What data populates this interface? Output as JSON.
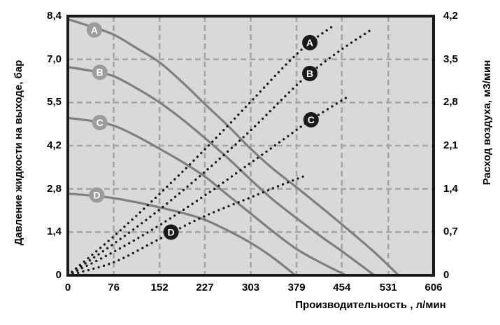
{
  "colors": {
    "page_bg": "#ffffff",
    "plot_bg": "#d9d9d9",
    "grid": "#a6a6a6",
    "border": "#1a1a1a",
    "pressure_curve": "#7f7f7f",
    "pressure_label_bg": "#9c9c9c",
    "air_curve": "#1a1a1a",
    "air_label_bg": "#1a1a1a",
    "label_text": "#ffffff",
    "axis_text": "#000000"
  },
  "chart_data": {
    "type": "line",
    "title": "",
    "xlabel": "Производительность , л/мин",
    "ylabel_left": "Давление жидкости на выходе, бар",
    "ylabel_right": "Расход воздуха, м3/мин",
    "xlim": [
      0,
      606
    ],
    "ylim_left": [
      0,
      8.4
    ],
    "ylim_right": [
      0,
      4.2
    ],
    "grid": true,
    "x_ticks": [
      "0",
      "76",
      "152",
      "227",
      "303",
      "379",
      "454",
      "531",
      "606"
    ],
    "x_tick_values": [
      0,
      76,
      152,
      227,
      303,
      379,
      454,
      531,
      606
    ],
    "y_left_ticks": [
      "0",
      "1,4",
      "2,8",
      "4,2",
      "5,5",
      "7,0",
      "8,4"
    ],
    "y_right_ticks": [
      "0",
      "0,7",
      "1,4",
      "2,1",
      "2,8",
      "3,5",
      "4,2"
    ],
    "series": [
      {
        "name": "A",
        "kind": "pressure",
        "axis": "left",
        "style": "solid",
        "label": {
          "text": "A",
          "x": 44,
          "y": 7.95
        },
        "points": [
          [
            0,
            8.3
          ],
          [
            40,
            8.05
          ],
          [
            76,
            7.8
          ],
          [
            115,
            7.35
          ],
          [
            152,
            6.9
          ],
          [
            190,
            6.25
          ],
          [
            227,
            5.55
          ],
          [
            265,
            4.85
          ],
          [
            303,
            4.1
          ],
          [
            340,
            3.45
          ],
          [
            379,
            2.85
          ],
          [
            420,
            2.2
          ],
          [
            454,
            1.65
          ],
          [
            505,
            0.8
          ],
          [
            548,
            0
          ]
        ]
      },
      {
        "name": "B",
        "kind": "pressure",
        "axis": "left",
        "style": "solid",
        "label": {
          "text": "B",
          "x": 53,
          "y": 6.58
        },
        "points": [
          [
            0,
            6.75
          ],
          [
            40,
            6.62
          ],
          [
            76,
            6.45
          ],
          [
            115,
            6.05
          ],
          [
            152,
            5.6
          ],
          [
            190,
            5.05
          ],
          [
            227,
            4.45
          ],
          [
            265,
            3.8
          ],
          [
            303,
            3.1
          ],
          [
            340,
            2.45
          ],
          [
            379,
            1.85
          ],
          [
            420,
            1.25
          ],
          [
            454,
            0.78
          ],
          [
            508,
            0
          ]
        ]
      },
      {
        "name": "C",
        "kind": "pressure",
        "axis": "left",
        "style": "solid",
        "label": {
          "text": "C",
          "x": 53,
          "y": 4.95
        },
        "points": [
          [
            0,
            5.1
          ],
          [
            40,
            5.0
          ],
          [
            76,
            4.85
          ],
          [
            115,
            4.5
          ],
          [
            152,
            4.1
          ],
          [
            190,
            3.67
          ],
          [
            227,
            3.2
          ],
          [
            265,
            2.6
          ],
          [
            303,
            2.0
          ],
          [
            340,
            1.42
          ],
          [
            379,
            0.85
          ],
          [
            420,
            0.4
          ],
          [
            461,
            0
          ]
        ]
      },
      {
        "name": "D",
        "kind": "pressure",
        "axis": "left",
        "style": "solid",
        "label": {
          "text": "D",
          "x": 48,
          "y": 2.6
        },
        "points": [
          [
            0,
            2.65
          ],
          [
            40,
            2.58
          ],
          [
            76,
            2.5
          ],
          [
            115,
            2.36
          ],
          [
            152,
            2.2
          ],
          [
            190,
            2.02
          ],
          [
            227,
            1.8
          ],
          [
            265,
            1.45
          ],
          [
            303,
            1.05
          ],
          [
            340,
            0.57
          ],
          [
            377,
            0
          ]
        ]
      },
      {
        "name": "A-air",
        "kind": "air",
        "axis": "right",
        "style": "dotted",
        "label": {
          "text": "A",
          "x": 401,
          "y": 3.77
        },
        "points": [
          [
            0,
            0
          ],
          [
            76,
            0.63
          ],
          [
            150,
            1.3
          ],
          [
            225,
            2.02
          ],
          [
            300,
            2.78
          ],
          [
            360,
            3.4
          ],
          [
            401,
            3.77
          ],
          [
            441,
            4.05
          ]
        ]
      },
      {
        "name": "B-air",
        "kind": "air",
        "axis": "right",
        "style": "dotted",
        "label": {
          "text": "B",
          "x": 401,
          "y": 3.27
        },
        "points": [
          [
            0,
            0
          ],
          [
            76,
            0.51
          ],
          [
            150,
            1.05
          ],
          [
            225,
            1.66
          ],
          [
            300,
            2.32
          ],
          [
            360,
            2.9
          ],
          [
            401,
            3.27
          ],
          [
            455,
            3.67
          ],
          [
            506,
            4.0
          ]
        ]
      },
      {
        "name": "C-air",
        "kind": "air",
        "axis": "right",
        "style": "dotted",
        "label": {
          "text": "C",
          "x": 403,
          "y": 2.52
        },
        "points": [
          [
            0,
            0
          ],
          [
            76,
            0.38
          ],
          [
            150,
            0.8
          ],
          [
            225,
            1.28
          ],
          [
            300,
            1.8
          ],
          [
            360,
            2.22
          ],
          [
            403,
            2.52
          ],
          [
            465,
            2.9
          ]
        ]
      },
      {
        "name": "D-air",
        "kind": "air",
        "axis": "right",
        "style": "dotted",
        "label": {
          "text": "D",
          "x": 171,
          "y": 0.7
        },
        "points": [
          [
            0,
            0
          ],
          [
            76,
            0.21
          ],
          [
            150,
            0.58
          ],
          [
            225,
            0.95
          ],
          [
            300,
            1.25
          ],
          [
            350,
            1.45
          ],
          [
            390,
            1.6
          ]
        ]
      }
    ]
  }
}
